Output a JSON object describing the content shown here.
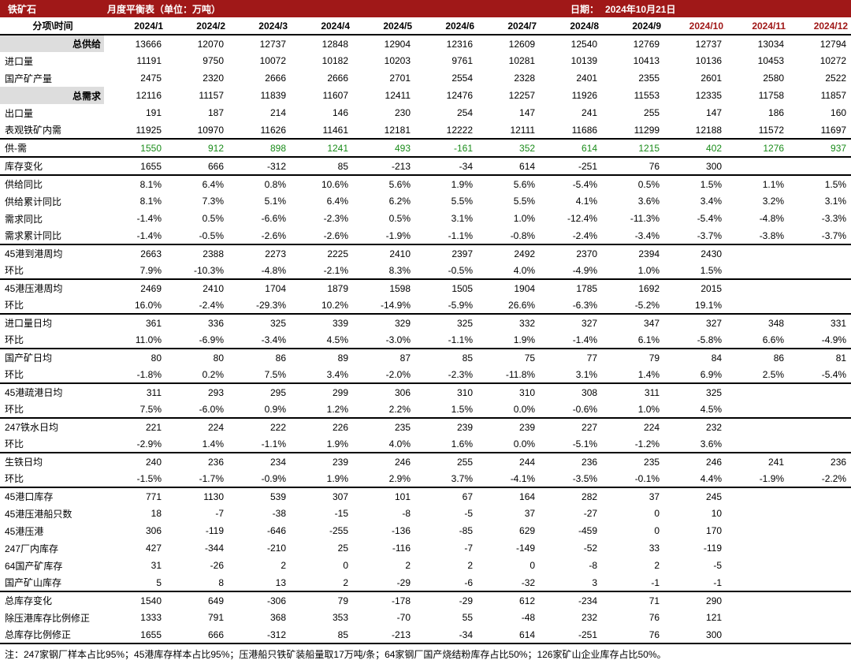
{
  "header": {
    "title": "铁矿石",
    "subtitle": "月度平衡表（单位：万吨）",
    "dateLabel": "日期：",
    "dateValue": "2024年10月21日"
  },
  "columns": {
    "label": "分项\\时间",
    "months": [
      "2024/1",
      "2024/2",
      "2024/3",
      "2024/4",
      "2024/5",
      "2024/6",
      "2024/7",
      "2024/8",
      "2024/9",
      "2024/10",
      "2024/11",
      "2024/12"
    ],
    "futureStart": 9
  },
  "rows": [
    {
      "label": "总供给",
      "cells": [
        "13666",
        "12070",
        "12737",
        "12848",
        "12904",
        "12316",
        "12609",
        "12540",
        "12769",
        "12737",
        "13034",
        "12794"
      ],
      "shade": true
    },
    {
      "label": "进口量",
      "cells": [
        "11191",
        "9750",
        "10072",
        "10182",
        "10203",
        "9761",
        "10281",
        "10139",
        "10413",
        "10136",
        "10453",
        "10272"
      ]
    },
    {
      "label": "国产矿产量",
      "cells": [
        "2475",
        "2320",
        "2666",
        "2666",
        "2701",
        "2554",
        "2328",
        "2401",
        "2355",
        "2601",
        "2580",
        "2522"
      ]
    },
    {
      "label": "总需求",
      "cells": [
        "12116",
        "11157",
        "11839",
        "11607",
        "12411",
        "12476",
        "12257",
        "11926",
        "11553",
        "12335",
        "11758",
        "11857"
      ],
      "shade": true
    },
    {
      "label": "出口量",
      "cells": [
        "191",
        "187",
        "214",
        "146",
        "230",
        "254",
        "147",
        "241",
        "255",
        "147",
        "186",
        "160"
      ]
    },
    {
      "label": "表观铁矿内需",
      "cells": [
        "11925",
        "10970",
        "11626",
        "11461",
        "12181",
        "12222",
        "12111",
        "11686",
        "11299",
        "12188",
        "11572",
        "11697"
      ],
      "bb": true
    },
    {
      "label": "供-需",
      "cells": [
        "1550",
        "912",
        "898",
        "1241",
        "493",
        "-161",
        "352",
        "614",
        "1215",
        "402",
        "1276",
        "937"
      ],
      "green": true,
      "bb": true
    },
    {
      "label": "库存变化",
      "cells": [
        "1655",
        "666",
        "-312",
        "85",
        "-213",
        "-34",
        "614",
        "-251",
        "76",
        "300",
        "",
        ""
      ],
      "bb": true
    },
    {
      "label": "供给同比",
      "cells": [
        "8.1%",
        "6.4%",
        "0.8%",
        "10.6%",
        "5.6%",
        "1.9%",
        "5.6%",
        "-5.4%",
        "0.5%",
        "1.5%",
        "1.1%",
        "1.5%"
      ]
    },
    {
      "label": "供给累计同比",
      "cells": [
        "8.1%",
        "7.3%",
        "5.1%",
        "6.4%",
        "6.2%",
        "5.5%",
        "5.5%",
        "4.1%",
        "3.6%",
        "3.4%",
        "3.2%",
        "3.1%"
      ]
    },
    {
      "label": "需求同比",
      "cells": [
        "-1.4%",
        "0.5%",
        "-6.6%",
        "-2.3%",
        "0.5%",
        "3.1%",
        "1.0%",
        "-12.4%",
        "-11.3%",
        "-5.4%",
        "-4.8%",
        "-3.3%"
      ]
    },
    {
      "label": "需求累计同比",
      "cells": [
        "-1.4%",
        "-0.5%",
        "-2.6%",
        "-2.6%",
        "-1.9%",
        "-1.1%",
        "-0.8%",
        "-2.4%",
        "-3.4%",
        "-3.7%",
        "-3.8%",
        "-3.7%"
      ],
      "bb": true
    },
    {
      "label": "45港到港周均",
      "cells": [
        "2663",
        "2388",
        "2273",
        "2225",
        "2410",
        "2397",
        "2492",
        "2370",
        "2394",
        "2430",
        "",
        ""
      ]
    },
    {
      "label": "环比",
      "cells": [
        "7.9%",
        "-10.3%",
        "-4.8%",
        "-2.1%",
        "8.3%",
        "-0.5%",
        "4.0%",
        "-4.9%",
        "1.0%",
        "1.5%",
        "",
        ""
      ],
      "bb": true
    },
    {
      "label": "45港压港周均",
      "cells": [
        "2469",
        "2410",
        "1704",
        "1879",
        "1598",
        "1505",
        "1904",
        "1785",
        "1692",
        "2015",
        "",
        ""
      ]
    },
    {
      "label": "环比",
      "cells": [
        "16.0%",
        "-2.4%",
        "-29.3%",
        "10.2%",
        "-14.9%",
        "-5.9%",
        "26.6%",
        "-6.3%",
        "-5.2%",
        "19.1%",
        "",
        ""
      ],
      "bb": true
    },
    {
      "label": "进口量日均",
      "cells": [
        "361",
        "336",
        "325",
        "339",
        "329",
        "325",
        "332",
        "327",
        "347",
        "327",
        "348",
        "331"
      ]
    },
    {
      "label": "环比",
      "cells": [
        "11.0%",
        "-6.9%",
        "-3.4%",
        "4.5%",
        "-3.0%",
        "-1.1%",
        "1.9%",
        "-1.4%",
        "6.1%",
        "-5.8%",
        "6.6%",
        "-4.9%"
      ],
      "bb": true
    },
    {
      "label": "国产矿日均",
      "cells": [
        "80",
        "80",
        "86",
        "89",
        "87",
        "85",
        "75",
        "77",
        "79",
        "84",
        "86",
        "81"
      ]
    },
    {
      "label": "环比",
      "cells": [
        "-1.8%",
        "0.2%",
        "7.5%",
        "3.4%",
        "-2.0%",
        "-2.3%",
        "-11.8%",
        "3.1%",
        "1.4%",
        "6.9%",
        "2.5%",
        "-5.4%"
      ],
      "bb": true
    },
    {
      "label": "45港疏港日均",
      "cells": [
        "311",
        "293",
        "295",
        "299",
        "306",
        "310",
        "310",
        "308",
        "311",
        "325",
        "",
        ""
      ]
    },
    {
      "label": "环比",
      "cells": [
        "7.5%",
        "-6.0%",
        "0.9%",
        "1.2%",
        "2.2%",
        "1.5%",
        "0.0%",
        "-0.6%",
        "1.0%",
        "4.5%",
        "",
        ""
      ],
      "bb": true
    },
    {
      "label": "247铁水日均",
      "cells": [
        "221",
        "224",
        "222",
        "226",
        "235",
        "239",
        "239",
        "227",
        "224",
        "232",
        "",
        ""
      ]
    },
    {
      "label": "环比",
      "cells": [
        "-2.9%",
        "1.4%",
        "-1.1%",
        "1.9%",
        "4.0%",
        "1.6%",
        "0.0%",
        "-5.1%",
        "-1.2%",
        "3.6%",
        "",
        ""
      ],
      "bb": true
    },
    {
      "label": "生铁日均",
      "cells": [
        "240",
        "236",
        "234",
        "239",
        "246",
        "255",
        "244",
        "236",
        "235",
        "246",
        "241",
        "236"
      ]
    },
    {
      "label": "环比",
      "cells": [
        "-1.5%",
        "-1.7%",
        "-0.9%",
        "1.9%",
        "2.9%",
        "3.7%",
        "-4.1%",
        "-3.5%",
        "-0.1%",
        "4.4%",
        "-1.9%",
        "-2.2%"
      ],
      "bb": true
    },
    {
      "label": "45港口库存",
      "cells": [
        "771",
        "1130",
        "539",
        "307",
        "101",
        "67",
        "164",
        "282",
        "37",
        "245",
        "",
        ""
      ]
    },
    {
      "label": "45港压港船只数",
      "cells": [
        "18",
        "-7",
        "-38",
        "-15",
        "-8",
        "-5",
        "37",
        "-27",
        "0",
        "10",
        "",
        ""
      ]
    },
    {
      "label": "45港压港",
      "cells": [
        "306",
        "-119",
        "-646",
        "-255",
        "-136",
        "-85",
        "629",
        "-459",
        "0",
        "170",
        "",
        ""
      ]
    },
    {
      "label": "247厂内库存",
      "cells": [
        "427",
        "-344",
        "-210",
        "25",
        "-116",
        "-7",
        "-149",
        "-52",
        "33",
        "-119",
        "",
        ""
      ]
    },
    {
      "label": "64国产矿库存",
      "cells": [
        "31",
        "-26",
        "2",
        "0",
        "2",
        "2",
        "0",
        "-8",
        "2",
        "-5",
        "",
        ""
      ]
    },
    {
      "label": "国产矿山库存",
      "cells": [
        "5",
        "8",
        "13",
        "2",
        "-29",
        "-6",
        "-32",
        "3",
        "-1",
        "-1",
        "",
        ""
      ],
      "bb": true
    },
    {
      "label": "总库存变化",
      "cells": [
        "1540",
        "649",
        "-306",
        "79",
        "-178",
        "-29",
        "612",
        "-234",
        "71",
        "290",
        "",
        ""
      ]
    },
    {
      "label": "除压港库存比例修正",
      "cells": [
        "1333",
        "791",
        "368",
        "353",
        "-70",
        "55",
        "-48",
        "232",
        "76",
        "121",
        "",
        ""
      ]
    },
    {
      "label": "总库存比例修正",
      "cells": [
        "1655",
        "666",
        "-312",
        "85",
        "-213",
        "-34",
        "614",
        "-251",
        "76",
        "300",
        "",
        ""
      ]
    }
  ],
  "footnote": "注：247家钢厂样本占比95%；45港库存样本占比95%；压港船只铁矿装船量取17万吨/条；64家钢厂国产烧结粉库存占比50%；126家矿山企业库存占比50%。"
}
